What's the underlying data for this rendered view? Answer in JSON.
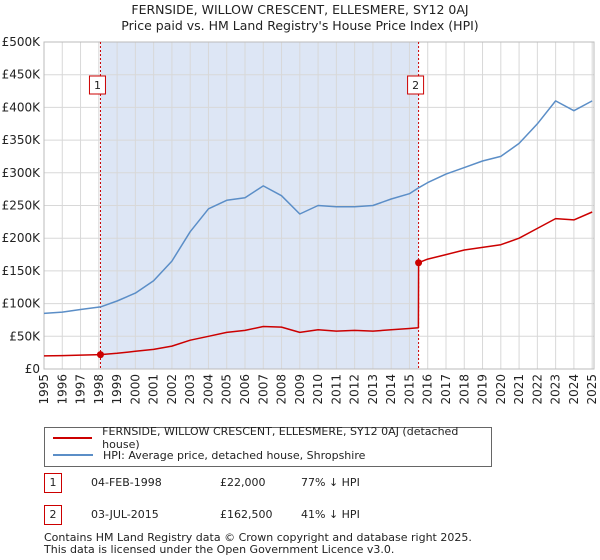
{
  "title_line1": "FERNSIDE, WILLOW CRESCENT, ELLESMERE, SY12 0AJ",
  "title_line2": "Price paid vs. HM Land Registry's House Price Index (HPI)",
  "colors": {
    "property": "#cc0000",
    "hpi": "#5b8ec7",
    "shade": "#dde6f5",
    "grid": "#d8d8d8"
  },
  "chart_data": {
    "type": "line",
    "xlim": [
      1995,
      2025.1
    ],
    "ylim": [
      0,
      500000
    ],
    "x_ticks": [
      1995,
      1996,
      1997,
      1998,
      1999,
      2000,
      2001,
      2002,
      2003,
      2004,
      2005,
      2006,
      2007,
      2008,
      2009,
      2010,
      2011,
      2012,
      2013,
      2014,
      2015,
      2016,
      2017,
      2018,
      2019,
      2020,
      2021,
      2022,
      2023,
      2024,
      2025
    ],
    "y_ticks": [
      {
        "value": 0,
        "label": "£0"
      },
      {
        "value": 50000,
        "label": "£50K"
      },
      {
        "value": 100000,
        "label": "£100K"
      },
      {
        "value": 150000,
        "label": "£150K"
      },
      {
        "value": 200000,
        "label": "£200K"
      },
      {
        "value": 250000,
        "label": "£250K"
      },
      {
        "value": 300000,
        "label": "£300K"
      },
      {
        "value": 350000,
        "label": "£350K"
      },
      {
        "value": 400000,
        "label": "£400K"
      },
      {
        "value": 450000,
        "label": "£450K"
      },
      {
        "value": 500000,
        "label": "£500K"
      }
    ],
    "shaded_span": [
      1998.09,
      2015.5
    ],
    "series": [
      {
        "name": "FERNSIDE, WILLOW CRESCENT, ELLESMERE, SY12 0AJ (detached house)",
        "color": "#cc0000",
        "x": [
          1995,
          1996,
          1997,
          1998.09,
          1999,
          2000,
          2001,
          2002,
          2003,
          2004,
          2005,
          2006,
          2007,
          2008,
          2009,
          2010,
          2011,
          2012,
          2013,
          2014,
          2015,
          2015.49,
          2015.5,
          2016,
          2017,
          2018,
          2019,
          2020,
          2021,
          2022,
          2023,
          2024,
          2025
        ],
        "y": [
          20000,
          20500,
          21200,
          22000,
          24000,
          27000,
          30000,
          35000,
          44000,
          50000,
          56000,
          59000,
          65000,
          64000,
          56000,
          60000,
          58000,
          59000,
          58000,
          60000,
          62000,
          63000,
          162500,
          168000,
          175000,
          182000,
          186000,
          190000,
          200000,
          215000,
          230000,
          228000,
          240000
        ]
      },
      {
        "name": "HPI: Average price, detached house, Shropshire",
        "color": "#5b8ec7",
        "x": [
          1995,
          1996,
          1997,
          1998.09,
          1999,
          2000,
          2001,
          2002,
          2003,
          2004,
          2005,
          2006,
          2007,
          2008,
          2009,
          2010,
          2011,
          2012,
          2013,
          2014,
          2015,
          2015.5,
          2016,
          2017,
          2018,
          2019,
          2020,
          2021,
          2022,
          2023,
          2024,
          2025
        ],
        "y": [
          85000,
          87000,
          91000,
          95000,
          104000,
          116000,
          135000,
          165000,
          210000,
          245000,
          258000,
          262000,
          280000,
          265000,
          237000,
          250000,
          248000,
          248000,
          250000,
          260000,
          268000,
          277000,
          285000,
          298000,
          308000,
          318000,
          325000,
          345000,
          375000,
          410000,
          395000,
          410000
        ]
      }
    ],
    "transactions": [
      {
        "id": "1",
        "x": 1998.09,
        "price": 22000
      },
      {
        "id": "2",
        "x": 2015.5,
        "price": 162500
      }
    ]
  },
  "legend": {
    "property_label": "FERNSIDE, WILLOW CRESCENT, ELLESMERE, SY12 0AJ (detached house)",
    "hpi_label": "HPI: Average price, detached house, Shropshire"
  },
  "transactions_table": [
    {
      "id": "1",
      "date": "04-FEB-1998",
      "price": "£22,000",
      "hpi": "77% ↓ HPI"
    },
    {
      "id": "2",
      "date": "03-JUL-2015",
      "price": "£162,500",
      "hpi": "41% ↓ HPI"
    }
  ],
  "footer_line1": "Contains HM Land Registry data © Crown copyright and database right 2025.",
  "footer_line2": "This data is licensed under the Open Government Licence v3.0."
}
